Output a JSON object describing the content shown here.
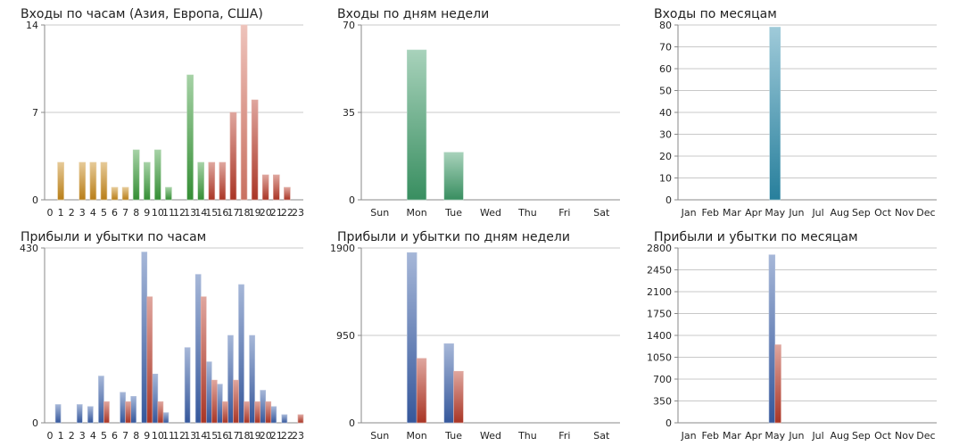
{
  "chart_data": [
    {
      "type": "bar",
      "title": "Входы по часам (Азия, Европа, США)",
      "categories": [
        "0",
        "1",
        "2",
        "3",
        "4",
        "5",
        "6",
        "7",
        "8",
        "9",
        "10",
        "11",
        "12",
        "13",
        "14",
        "15",
        "16",
        "17",
        "18",
        "19",
        "20",
        "21",
        "22",
        "23"
      ],
      "values": [
        0,
        3,
        0,
        3,
        3,
        3,
        1,
        1,
        4,
        3,
        4,
        1,
        0,
        10,
        3,
        3,
        3,
        7,
        14,
        8,
        2,
        2,
        1,
        0
      ],
      "yticks": [
        0,
        7,
        14
      ],
      "ylim": [
        0,
        14
      ],
      "grid": true,
      "colors": [
        "#c8891a",
        "#c8891a",
        "#c8891a",
        "#c8891a",
        "#c8891a",
        "#c8891a",
        "#c8891a",
        "#c8891a",
        "#3a9a3a",
        "#3a9a3a",
        "#3a9a3a",
        "#3a9a3a",
        "#3a9a3a",
        "#3a9a3a",
        "#3a9a3a",
        "#b83a28",
        "#b83a28",
        "#b83a28",
        "#d97a68",
        "#b83a28",
        "#b83a28",
        "#b83a28",
        "#b83a28",
        "#b83a28"
      ]
    },
    {
      "type": "bar",
      "title": "Входы по дням недели",
      "categories": [
        "Sun",
        "Mon",
        "Tue",
        "Wed",
        "Thu",
        "Fri",
        "Sat"
      ],
      "values": [
        0,
        60,
        19,
        0,
        0,
        0,
        0
      ],
      "yticks": [
        0,
        35,
        70
      ],
      "ylim": [
        0,
        70
      ],
      "grid": true,
      "colors": [
        "#3d9a68"
      ]
    },
    {
      "type": "bar",
      "title": "Входы по месяцам",
      "categories": [
        "Jan",
        "Feb",
        "Mar",
        "Apr",
        "May",
        "Jun",
        "Jul",
        "Aug",
        "Sep",
        "Oct",
        "Nov",
        "Dec"
      ],
      "values": [
        0,
        0,
        0,
        0,
        79,
        0,
        0,
        0,
        0,
        0,
        0,
        0
      ],
      "yticks": [
        0,
        10,
        20,
        30,
        40,
        50,
        60,
        70,
        80
      ],
      "ylim": [
        0,
        80
      ],
      "grid": true,
      "colors": [
        "#2a8aaa"
      ]
    },
    {
      "type": "bar",
      "title": "Прибыли и убытки по часам",
      "categories": [
        "0",
        "1",
        "2",
        "3",
        "4",
        "5",
        "6",
        "7",
        "8",
        "9",
        "10",
        "11",
        "12",
        "13",
        "14",
        "15",
        "16",
        "17",
        "18",
        "19",
        "20",
        "21",
        "22",
        "23"
      ],
      "series": [
        {
          "values": [
            0,
            45,
            0,
            45,
            40,
            115,
            0,
            75,
            65,
            420,
            120,
            25,
            0,
            185,
            365,
            150,
            95,
            215,
            340,
            215,
            80,
            40,
            20,
            0
          ],
          "color": "#3a5fa8"
        },
        {
          "values": [
            0,
            0,
            0,
            0,
            0,
            52,
            0,
            52,
            0,
            310,
            52,
            0,
            0,
            0,
            310,
            105,
            52,
            105,
            52,
            52,
            52,
            0,
            0,
            20
          ],
          "color": "#b83a28"
        }
      ],
      "yticks": [
        0,
        430
      ],
      "ylim": [
        0,
        430
      ],
      "grid": true
    },
    {
      "type": "bar",
      "title": "Прибыли и убытки по дням недели",
      "categories": [
        "Sun",
        "Mon",
        "Tue",
        "Wed",
        "Thu",
        "Fri",
        "Sat"
      ],
      "series": [
        {
          "values": [
            0,
            1850,
            860,
            0,
            0,
            0,
            0
          ],
          "color": "#3a5fa8"
        },
        {
          "values": [
            0,
            700,
            560,
            0,
            0,
            0,
            0
          ],
          "color": "#b83a28"
        }
      ],
      "yticks": [
        0,
        950,
        1900
      ],
      "ylim": [
        0,
        1900
      ],
      "grid": true
    },
    {
      "type": "bar",
      "title": "Прибыли и убытки по месяцам",
      "categories": [
        "Jan",
        "Feb",
        "Mar",
        "Apr",
        "May",
        "Jun",
        "Jul",
        "Aug",
        "Sep",
        "Oct",
        "Nov",
        "Dec"
      ],
      "series": [
        {
          "values": [
            0,
            0,
            0,
            0,
            2690,
            0,
            0,
            0,
            0,
            0,
            0,
            0
          ],
          "color": "#3a5fa8"
        },
        {
          "values": [
            0,
            0,
            0,
            0,
            1250,
            0,
            0,
            0,
            0,
            0,
            0,
            0
          ],
          "color": "#b83a28"
        }
      ],
      "yticks": [
        0,
        350,
        700,
        1050,
        1400,
        1750,
        2100,
        2450,
        2800
      ],
      "ylim": [
        0,
        2800
      ],
      "grid": true
    }
  ]
}
